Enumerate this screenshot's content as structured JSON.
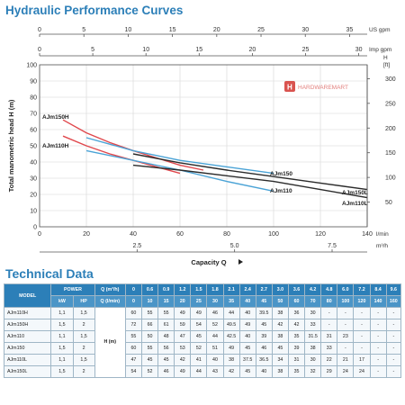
{
  "header": {
    "curves_title": "Hydraulic Performance Curves",
    "tech_title": "Technical Data"
  },
  "watermark": {
    "text": "HARDWAREMART",
    "color": "#d9534f"
  },
  "colors": {
    "accent": "#2c7fb8",
    "red": "#e0474c",
    "blue": "#4aa3d6",
    "dark": "#2b2b2b",
    "grid": "#d5d5d5"
  },
  "chart_data": {
    "type": "line",
    "y_axis": {
      "label": "Total manometric head H (m)",
      "ticks": [
        0,
        10,
        20,
        30,
        40,
        50,
        60,
        70,
        80,
        90,
        100
      ],
      "ylim": [
        0,
        100
      ]
    },
    "y2_axis": {
      "unit": "H [ft]",
      "unit_top": "H",
      "unit_bottom": "[ft]",
      "ticks": [
        50,
        100,
        150,
        200,
        250,
        300
      ]
    },
    "x_axis_lmin": {
      "unit": "l/min",
      "ticks": [
        0,
        20,
        40,
        60,
        80,
        100,
        120,
        140
      ],
      "xlim": [
        0,
        140
      ]
    },
    "x_axis_m3h": {
      "label": "Capacity Q",
      "unit": "m³/h",
      "ticks": [
        "2.5",
        "5.0",
        "7.5"
      ],
      "values": [
        2.5,
        5.0,
        7.5
      ]
    },
    "x_axis_usgpm": {
      "unit": "US gpm",
      "ticks": [
        0,
        5,
        10,
        15,
        20,
        25,
        30,
        35
      ]
    },
    "x_axis_impgpm": {
      "unit": "Imp gpm",
      "ticks": [
        0,
        5,
        10,
        15,
        20,
        25,
        30
      ]
    },
    "grid": true,
    "series": [
      {
        "name": "AJm150H",
        "color": "#e0474c",
        "x": [
          10,
          20,
          30,
          40,
          50,
          60,
          70
        ],
        "y": [
          66,
          58,
          52,
          47,
          42.5,
          38,
          35
        ]
      },
      {
        "name": "AJm110H",
        "color": "#e0474c",
        "x": [
          10,
          20,
          30,
          40,
          50,
          60
        ],
        "y": [
          56,
          50,
          45,
          41,
          37,
          33
        ]
      },
      {
        "name": "AJm150",
        "color": "#4aa3d6",
        "x": [
          20,
          40,
          60,
          80,
          100
        ],
        "y": [
          55,
          47,
          41,
          37,
          33
        ]
      },
      {
        "name": "AJm110",
        "color": "#4aa3d6",
        "x": [
          20,
          40,
          60,
          80,
          100
        ],
        "y": [
          47,
          41,
          35,
          28,
          22
        ]
      },
      {
        "name": "AJm150L",
        "color": "#2b2b2b",
        "x": [
          40,
          60,
          80,
          100,
          120,
          140
        ],
        "y": [
          45,
          39.5,
          35,
          31,
          27,
          23
        ]
      },
      {
        "name": "AJm110L",
        "color": "#2b2b2b",
        "x": [
          40,
          60,
          80,
          100,
          120,
          140
        ],
        "y": [
          38,
          35,
          31.5,
          28,
          23,
          18
        ]
      }
    ]
  },
  "tech_table": {
    "headers": {
      "model": "MODEL",
      "power": "POWER",
      "kw": "kW",
      "hp": "HP",
      "q_m3h": "Q (m³/h)",
      "q_lmin": "Q (l/min)",
      "h_unit": "H (m)"
    },
    "q_m3h": [
      "0",
      "0.6",
      "0.9",
      "1.2",
      "1.5",
      "1.8",
      "2.1",
      "2.4",
      "2.7",
      "3.0",
      "3.6",
      "4.2",
      "4.8",
      "6.0",
      "7.2",
      "8.4",
      "9.6"
    ],
    "q_lmin": [
      "0",
      "10",
      "15",
      "20",
      "25",
      "30",
      "35",
      "40",
      "45",
      "50",
      "60",
      "70",
      "80",
      "100",
      "120",
      "140",
      "160"
    ],
    "rows": [
      {
        "model": "AJm110H",
        "kw": "1,1",
        "hp": "1,5",
        "h": [
          "60",
          "55",
          "55",
          "49",
          "49",
          "46",
          "44",
          "40",
          "39.5",
          "38",
          "36",
          "30",
          "-",
          "-",
          "-",
          "-",
          "-"
        ]
      },
      {
        "model": "AJm150H",
        "kw": "1,5",
        "hp": "2",
        "h": [
          "72",
          "66",
          "61",
          "59",
          "54",
          "52",
          "49.5",
          "49",
          "45",
          "42",
          "42",
          "33",
          "-",
          "-",
          "-",
          "-",
          "-"
        ]
      },
      {
        "model": "AJm110",
        "kw": "1,1",
        "hp": "1,5",
        "h": [
          "55",
          "50",
          "48",
          "47",
          "45",
          "44",
          "42.5",
          "40",
          "39",
          "38",
          "35",
          "31.5",
          "31",
          "23",
          "-",
          "-",
          "-"
        ]
      },
      {
        "model": "AJm150",
        "kw": "1,5",
        "hp": "2",
        "h": [
          "60",
          "55",
          "56",
          "53",
          "52",
          "51",
          "49",
          "45",
          "46",
          "45",
          "39",
          "38",
          "33",
          "-",
          "-",
          "-",
          "-"
        ]
      },
      {
        "model": "AJm110L",
        "kw": "1,1",
        "hp": "1,5",
        "h": [
          "47",
          "45",
          "45",
          "42",
          "41",
          "40",
          "38",
          "37.5",
          "36.5",
          "34",
          "31",
          "30",
          "22",
          "21",
          "17",
          "-",
          "-"
        ]
      },
      {
        "model": "AJm150L",
        "kw": "1,5",
        "hp": "2",
        "h": [
          "54",
          "52",
          "46",
          "49",
          "44",
          "43",
          "42",
          "45",
          "40",
          "38",
          "35",
          "32",
          "29",
          "24",
          "24",
          "-",
          "-"
        ]
      }
    ]
  }
}
